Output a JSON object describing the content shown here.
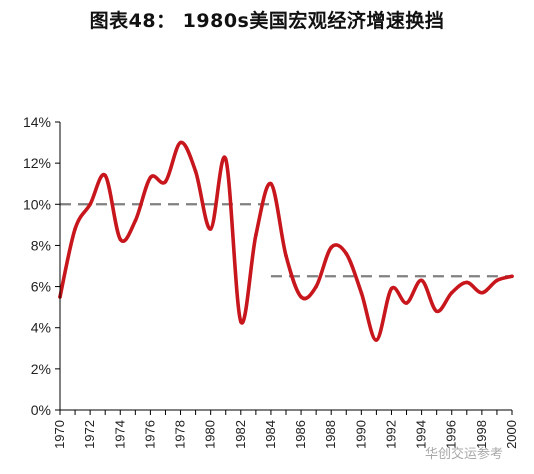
{
  "figure_title": "图表48： 1980s美国宏观经济增速换挡",
  "watermark": "华创交运参考",
  "colors": {
    "series": "#c8161d",
    "reference": "#808080",
    "axis": "#000000"
  },
  "chart_data": {
    "type": "line",
    "title": "图表48： 1980s美国宏观经济增速换挡",
    "xlabel": "",
    "ylabel": "",
    "xlim": [
      1970,
      2000
    ],
    "ylim": [
      0,
      14
    ],
    "y_ticks": [
      0,
      2,
      4,
      6,
      8,
      10,
      12,
      14
    ],
    "y_tick_labels": [
      "0%",
      "2%",
      "4%",
      "6%",
      "8%",
      "10%",
      "12%",
      "14%"
    ],
    "x_ticks": [
      1970,
      1972,
      1974,
      1976,
      1978,
      1980,
      1982,
      1984,
      1986,
      1988,
      1990,
      1992,
      1994,
      1996,
      1998,
      2000
    ],
    "grid": false,
    "legend": "none",
    "series": [
      {
        "x": [
          1970,
          1971,
          1972,
          1973,
          1974,
          1975,
          1976,
          1977,
          1978,
          1979,
          1980,
          1981,
          1982,
          1983,
          1984,
          1985,
          1986,
          1987,
          1988,
          1989,
          1990,
          1991,
          1992,
          1993,
          1994,
          1995,
          1996,
          1997,
          1998,
          1999,
          2000
        ],
        "y": [
          5.5,
          8.8,
          10.0,
          11.4,
          8.3,
          9.2,
          11.3,
          11.1,
          13.0,
          11.6,
          8.8,
          12.2,
          4.3,
          8.5,
          11.0,
          7.5,
          5.5,
          6.0,
          7.9,
          7.6,
          5.7,
          3.4,
          5.9,
          5.2,
          6.3,
          4.8,
          5.7,
          6.2,
          5.7,
          6.3,
          6.5
        ]
      }
    ],
    "reference_lines": [
      {
        "x_start": 1970,
        "x_end": 1984,
        "y": 10.0,
        "style": "dashed"
      },
      {
        "x_start": 1984,
        "x_end": 2000,
        "y": 6.5,
        "style": "dashed"
      }
    ]
  }
}
